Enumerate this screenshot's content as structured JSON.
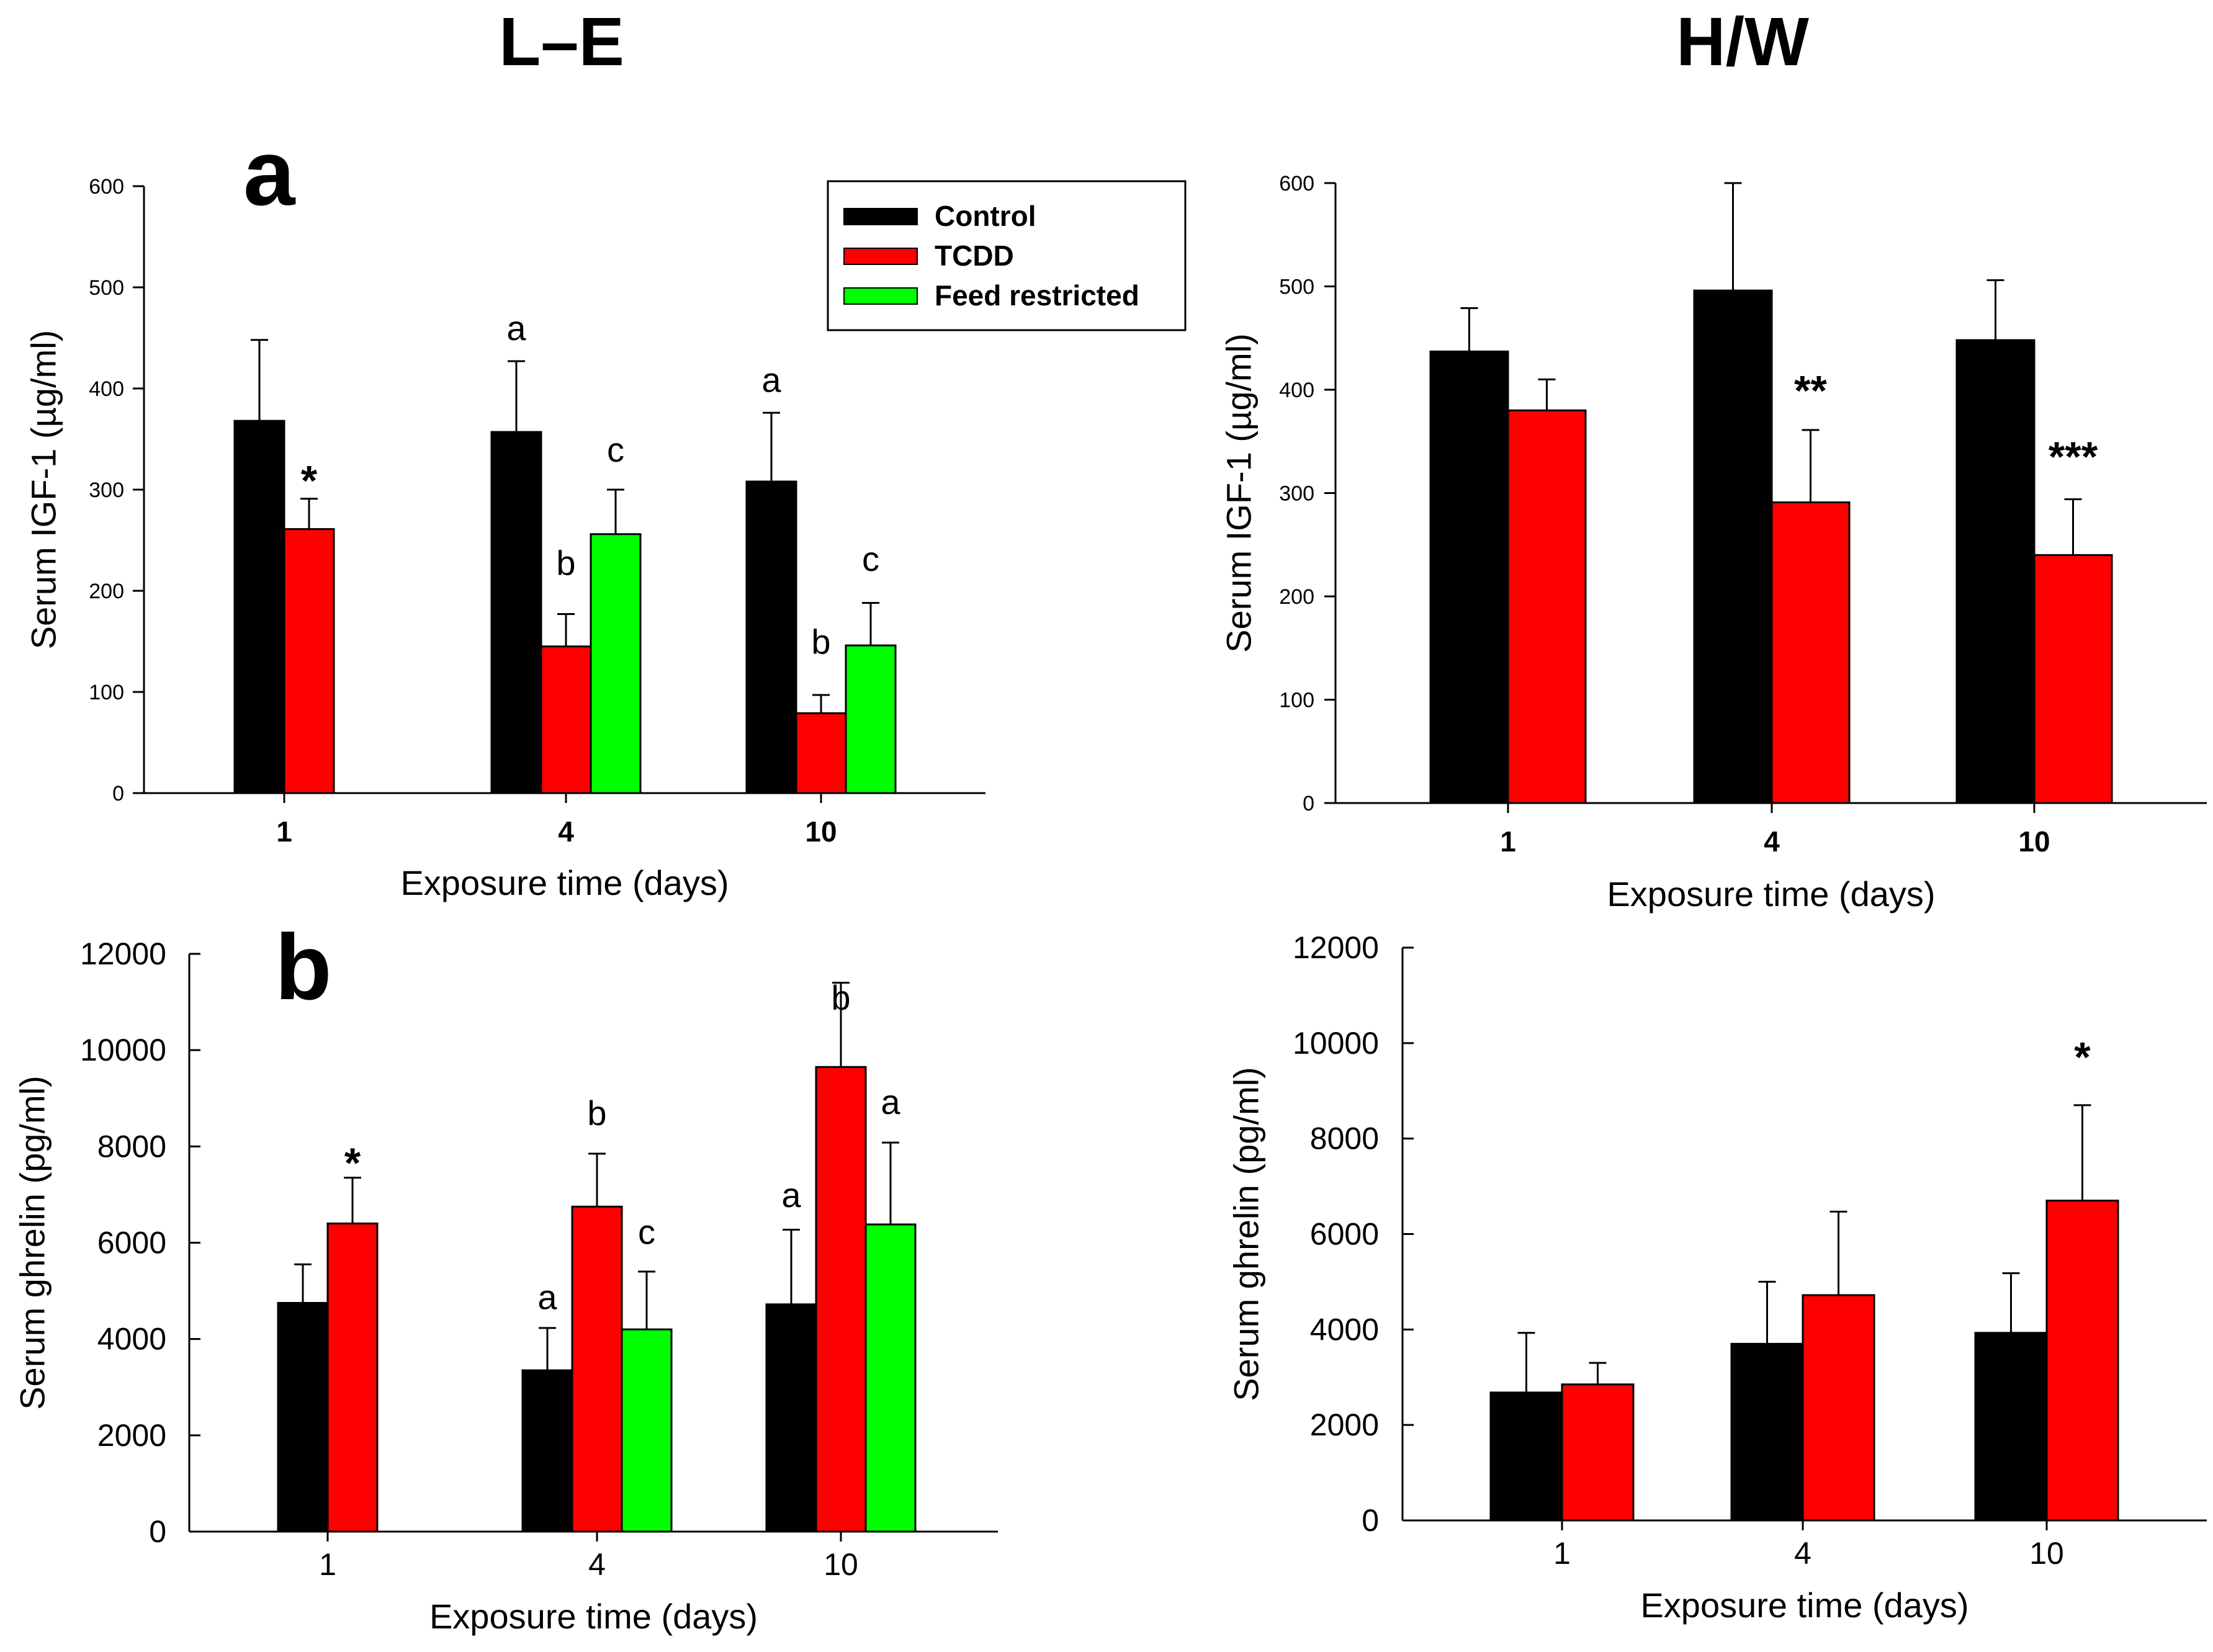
{
  "titles": {
    "left": "L–E",
    "right": "H/W"
  },
  "panel_letters": {
    "a": "a",
    "b": "b"
  },
  "legend": [
    {
      "label": "Control",
      "color": "#000000"
    },
    {
      "label": "TCDD",
      "color": "#ff0000"
    },
    {
      "label": "Feed restricted",
      "color": "#00ff00"
    }
  ],
  "chart_data": [
    {
      "id": "le-igf1",
      "type": "bar",
      "title": "L–E",
      "xlabel": "Exposure time (days)",
      "ylabel": "Serum IGF-1 (µg/ml)",
      "ylim": [
        0,
        600
      ],
      "yticks": [
        "0",
        "100",
        "200",
        "300",
        "400",
        "500",
        "600"
      ],
      "categories": [
        "1",
        "4",
        "10"
      ],
      "series": [
        {
          "name": "Control",
          "color": "#000000",
          "values": [
            368,
            357,
            308
          ],
          "errors": [
            80,
            70,
            68
          ]
        },
        {
          "name": "TCDD",
          "color": "#ff0000",
          "values": [
            261,
            145,
            79
          ],
          "errors": [
            30,
            32,
            18
          ]
        },
        {
          "name": "Feed restricted",
          "color": "#00ff00",
          "values": [
            null,
            256,
            146
          ],
          "errors": [
            null,
            44,
            42
          ]
        }
      ],
      "annotations": [
        {
          "text": "*",
          "cat": 0,
          "series": 1,
          "y": 318
        },
        {
          "text": "a",
          "cat": 1,
          "series": 0,
          "y": 460
        },
        {
          "text": "b",
          "cat": 1,
          "series": 1,
          "y": 228
        },
        {
          "text": "c",
          "cat": 1,
          "series": 2,
          "y": 340
        },
        {
          "text": "a",
          "cat": 2,
          "series": 0,
          "y": 409
        },
        {
          "text": "b",
          "cat": 2,
          "series": 1,
          "y": 150
        },
        {
          "text": "c",
          "cat": 2,
          "series": 2,
          "y": 232
        }
      ]
    },
    {
      "id": "hw-igf1",
      "type": "bar",
      "title": "H/W",
      "xlabel": "Exposure time (days)",
      "ylabel": "Serum IGF-1 (µg/ml)",
      "ylim": [
        0,
        600
      ],
      "yticks": [
        "0",
        "100",
        "200",
        "300",
        "400",
        "500",
        "600"
      ],
      "categories": [
        "1",
        "4",
        "10"
      ],
      "series": [
        {
          "name": "Control",
          "color": "#000000",
          "values": [
            437,
            496,
            448
          ],
          "errors": [
            42,
            104,
            58
          ]
        },
        {
          "name": "TCDD",
          "color": "#ff0000",
          "values": [
            380,
            291,
            240
          ],
          "errors": [
            30,
            70,
            54
          ]
        }
      ],
      "annotations": [
        {
          "text": "**",
          "cat": 1,
          "series": 1,
          "y": 408
        },
        {
          "text": "***",
          "cat": 2,
          "series": 1,
          "y": 344
        }
      ]
    },
    {
      "id": "le-ghrelin",
      "type": "bar",
      "title": "L–E",
      "xlabel": "Exposure time (days)",
      "ylabel": "Serum ghrelin (pg/ml)",
      "ylim": [
        0,
        12000
      ],
      "yticks": [
        "0",
        "2000",
        "4000",
        "6000",
        "8000",
        "10000",
        "12000"
      ],
      "categories": [
        "1",
        "4",
        "10"
      ],
      "series": [
        {
          "name": "Control",
          "color": "#000000",
          "values": [
            4750,
            3350,
            4720
          ],
          "errors": [
            800,
            880,
            1550
          ]
        },
        {
          "name": "TCDD",
          "color": "#ff0000",
          "values": [
            6400,
            6750,
            9650
          ],
          "errors": [
            950,
            1100,
            1750
          ]
        },
        {
          "name": "Feed restricted",
          "color": "#00ff00",
          "values": [
            null,
            4200,
            6380
          ],
          "errors": [
            null,
            1200,
            1700
          ]
        }
      ],
      "annotations": [
        {
          "text": "*",
          "cat": 0,
          "series": 1,
          "y": 7850
        },
        {
          "text": "a",
          "cat": 1,
          "series": 0,
          "y": 4880
        },
        {
          "text": "b",
          "cat": 1,
          "series": 1,
          "y": 8700
        },
        {
          "text": "c",
          "cat": 1,
          "series": 2,
          "y": 6230
        },
        {
          "text": "a",
          "cat": 2,
          "series": 0,
          "y": 7000
        },
        {
          "text": "b",
          "cat": 2,
          "series": 1,
          "y": 11100
        },
        {
          "text": "a",
          "cat": 2,
          "series": 2,
          "y": 8930
        }
      ]
    },
    {
      "id": "hw-ghrelin",
      "type": "bar",
      "title": "H/W",
      "xlabel": "Exposure time (days)",
      "ylabel": "Serum ghrelin (pg/ml)",
      "ylim": [
        0,
        12000
      ],
      "yticks": [
        "0",
        "2000",
        "4000",
        "6000",
        "8000",
        "10000",
        "12000"
      ],
      "categories": [
        "1",
        "4",
        "10"
      ],
      "series": [
        {
          "name": "Control",
          "color": "#000000",
          "values": [
            2680,
            3700,
            3930
          ],
          "errors": [
            1250,
            1300,
            1250
          ]
        },
        {
          "name": "TCDD",
          "color": "#ff0000",
          "values": [
            2850,
            4720,
            6700
          ],
          "errors": [
            450,
            1750,
            2000
          ]
        }
      ],
      "annotations": [
        {
          "text": "*",
          "cat": 2,
          "series": 1,
          "y": 9900
        }
      ]
    }
  ]
}
